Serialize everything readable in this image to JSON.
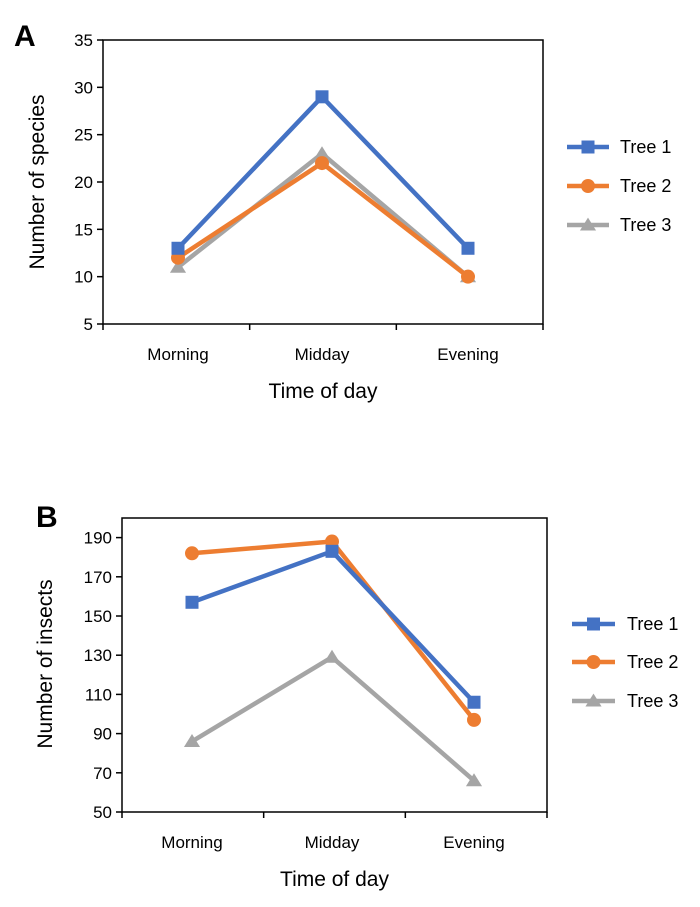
{
  "chart_data": [
    {
      "type": "line",
      "panel_label": "A",
      "categories": [
        "Morning",
        "Midday",
        "Evening"
      ],
      "xlabel": "Time of day",
      "ylabel": "Number of species",
      "ylim": [
        5,
        35
      ],
      "yticks": [
        5,
        10,
        15,
        20,
        25,
        30,
        35
      ],
      "grid": false,
      "legend_position": "right",
      "series": [
        {
          "name": "Tree 1",
          "color": "#4472C4",
          "marker": "square",
          "values": [
            13,
            29,
            13
          ]
        },
        {
          "name": "Tree 2",
          "color": "#ED7D31",
          "marker": "circle",
          "values": [
            12,
            22,
            10
          ]
        },
        {
          "name": "Tree 3",
          "color": "#A5A5A5",
          "marker": "triangle",
          "values": [
            11,
            23,
            10
          ]
        }
      ]
    },
    {
      "type": "line",
      "panel_label": "B",
      "categories": [
        "Morning",
        "Midday",
        "Evening"
      ],
      "xlabel": "Time of day",
      "ylabel": "Number of insects",
      "ylim": [
        50,
        200
      ],
      "yticks": [
        50,
        70,
        90,
        110,
        130,
        150,
        170,
        190
      ],
      "grid": false,
      "legend_position": "right",
      "series": [
        {
          "name": "Tree 1",
          "color": "#4472C4",
          "marker": "square",
          "values": [
            157,
            183,
            106
          ]
        },
        {
          "name": "Tree 2",
          "color": "#ED7D31",
          "marker": "circle",
          "values": [
            182,
            188,
            97
          ]
        },
        {
          "name": "Tree 3",
          "color": "#A5A5A5",
          "marker": "triangle",
          "values": [
            86,
            129,
            66
          ]
        }
      ]
    }
  ]
}
